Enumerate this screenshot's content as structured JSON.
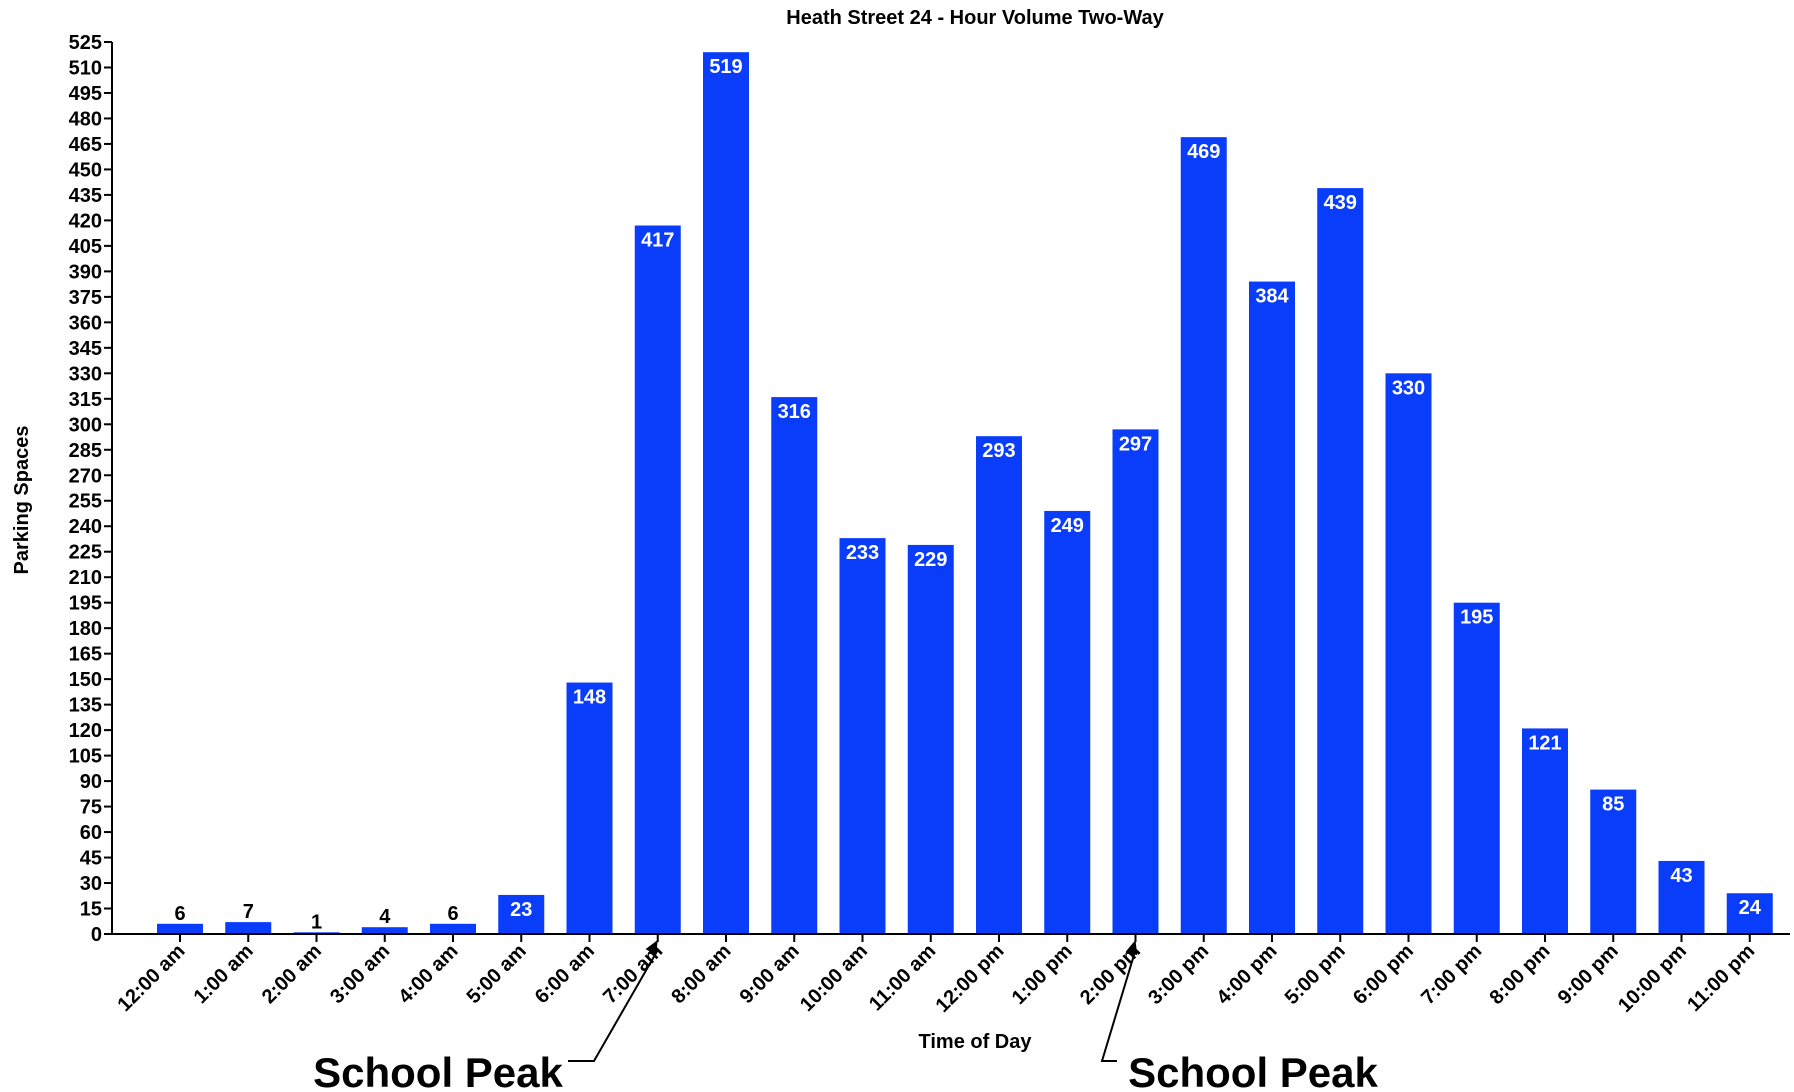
{
  "chart_data": {
    "type": "bar",
    "title": "Heath Street 24 - Hour Volume Two-Way",
    "xlabel": "Time of Day",
    "ylabel": "Parking Spaces",
    "ylim": [
      0,
      525
    ],
    "ytick_step": 15,
    "grid": false,
    "legend": "none",
    "bar_color": "#0a3dfa",
    "categories": [
      "12:00 am",
      "1:00 am",
      "2:00 am",
      "3:00 am",
      "4:00 am",
      "5:00 am",
      "6:00 am",
      "7:00 am",
      "8:00 am",
      "9:00 am",
      "10:00 am",
      "11:00 am",
      "12:00 pm",
      "1:00 pm",
      "2:00 pm",
      "3:00 pm",
      "4:00 pm",
      "5:00 pm",
      "6:00 pm",
      "7:00 pm",
      "8:00 pm",
      "9:00 pm",
      "10:00 pm",
      "11:00 pm"
    ],
    "values": [
      6,
      7,
      1,
      4,
      6,
      23,
      148,
      417,
      519,
      316,
      233,
      229,
      293,
      249,
      297,
      469,
      384,
      439,
      330,
      195,
      121,
      85,
      43,
      24
    ],
    "annotations": [
      {
        "text": "School Peak",
        "points_to": "7:00 am"
      },
      {
        "text": "School Peak",
        "points_to": "2:00 pm"
      }
    ]
  }
}
